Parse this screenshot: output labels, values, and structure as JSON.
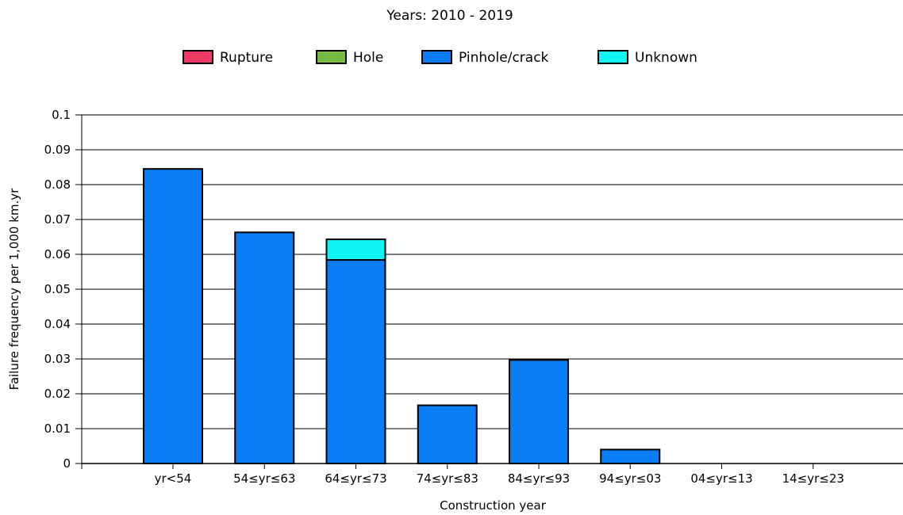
{
  "chart_data": {
    "type": "bar",
    "stacked": true,
    "title": "Years: 2010 - 2019",
    "xlabel": "Construction year",
    "ylabel": "Failure frequency per 1,000 km.yr",
    "ylim": [
      0,
      0.1
    ],
    "yticks": [
      "0",
      "0.01",
      "0.02",
      "0.03",
      "0.04",
      "0.05",
      "0.06",
      "0.07",
      "0.08",
      "0.09",
      "0.1"
    ],
    "grid": true,
    "legend_position": "top-center",
    "categories": [
      "yr<54",
      "54≤yr≤63",
      "64≤yr≤73",
      "74≤yr≤83",
      "84≤yr≤93",
      "94≤yr≤03",
      "04≤yr≤13",
      "14≤yr≤23"
    ],
    "series": [
      {
        "name": "Rupture",
        "color": "#ee3a64",
        "values": [
          0,
          0,
          0,
          0,
          0,
          0,
          0,
          0
        ]
      },
      {
        "name": "Hole",
        "color": "#77bb44",
        "values": [
          0,
          0,
          0,
          0,
          0,
          0,
          0,
          0
        ]
      },
      {
        "name": "Pinhole/crack",
        "color": "#0a7df5",
        "values": [
          0.0845,
          0.0663,
          0.0584,
          0.0167,
          0.0297,
          0.004,
          0,
          0
        ]
      },
      {
        "name": "Unknown",
        "color": "#0ff5f5",
        "values": [
          0,
          0,
          0.0059,
          0,
          0,
          0,
          0,
          0
        ]
      }
    ]
  }
}
